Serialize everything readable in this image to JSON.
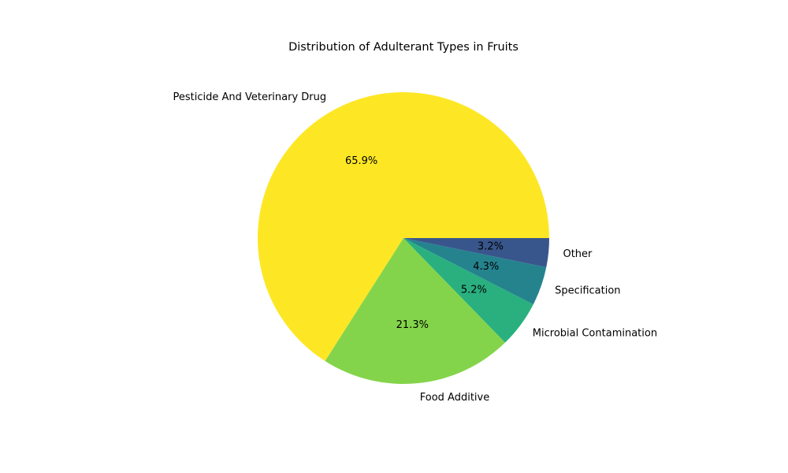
{
  "chart_data": {
    "type": "pie",
    "title": "Distribution of Adulterant Types in Fruits",
    "start_angle_deg": 0,
    "direction": "counterclockwise",
    "slices": [
      {
        "label": "Pesticide And Veterinary Drug",
        "value": 65.9,
        "pct_label": "65.9%",
        "color": "#fde725"
      },
      {
        "label": "Food Additive",
        "value": 21.3,
        "pct_label": "21.3%",
        "color": "#84d44b"
      },
      {
        "label": "Microbial Contamination",
        "value": 5.2,
        "pct_label": "5.2%",
        "color": "#2ab07f"
      },
      {
        "label": "Specification",
        "value": 4.3,
        "pct_label": "4.3%",
        "color": "#25838e"
      },
      {
        "label": "Other",
        "value": 3.2,
        "pct_label": "3.2%",
        "color": "#39568c"
      }
    ]
  }
}
